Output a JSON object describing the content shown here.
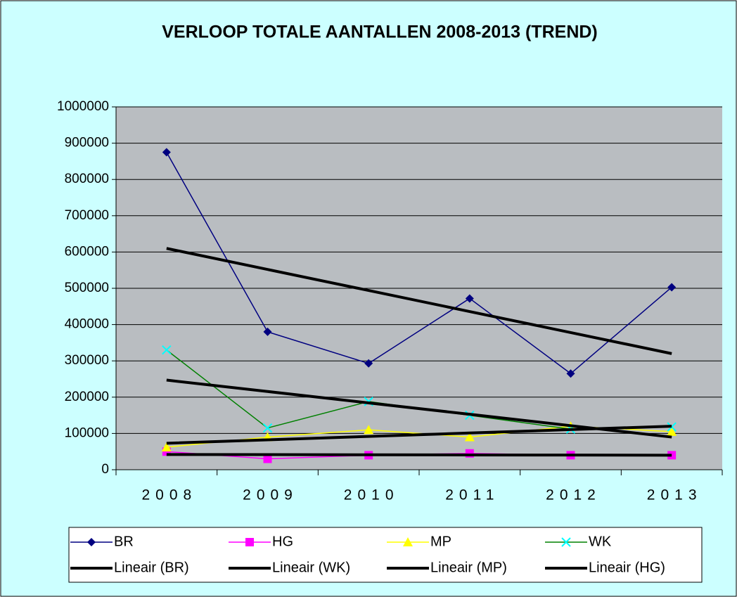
{
  "chart_data": {
    "type": "line",
    "title": "VERLOOP TOTALE AANTALLEN 2008-2013  (TREND)",
    "categories": [
      "2008",
      "2009",
      "2010",
      "2011",
      "2012",
      "2013"
    ],
    "ylim": [
      0,
      1000000
    ],
    "yticks": [
      0,
      100000,
      200000,
      300000,
      400000,
      500000,
      600000,
      700000,
      800000,
      900000,
      1000000
    ],
    "grid": true,
    "legend": "bottom",
    "series": [
      {
        "name": "BR",
        "color": "#000080",
        "marker": "diamond",
        "marker_color": "#000080",
        "values": [
          875000,
          380000,
          293000,
          472000,
          265000,
          503000
        ]
      },
      {
        "name": "HG",
        "color": "#ff00ff",
        "marker": "square",
        "marker_color": "#ff00ff",
        "values": [
          50000,
          30000,
          40000,
          45000,
          40000,
          40000
        ]
      },
      {
        "name": "MP",
        "color": "#ffff00",
        "marker": "triangle",
        "marker_color": "#ffff00",
        "values": [
          62000,
          90000,
          110000,
          90000,
          120000,
          105000
        ]
      },
      {
        "name": "WK",
        "color": "#008000",
        "marker": "x",
        "marker_color": "#00ffff",
        "values": [
          330000,
          115000,
          188000,
          150000,
          112000,
          118000
        ]
      },
      {
        "name": "Lineair (BR)",
        "color": "#000000",
        "trendline": true,
        "values": [
          610000,
          552000,
          494000,
          436000,
          378000,
          320000
        ]
      },
      {
        "name": "Lineair (WK)",
        "color": "#000000",
        "trendline": true,
        "values": [
          247000,
          215600,
          184200,
          152800,
          121400,
          90000
        ]
      },
      {
        "name": "Lineair (MP)",
        "color": "#000000",
        "trendline": true,
        "values": [
          73000,
          82400,
          91800,
          101200,
          110600,
          120000
        ]
      },
      {
        "name": "Lineair (HG)",
        "color": "#000000",
        "trendline": true,
        "values": [
          42000,
          41600,
          41200,
          40800,
          40400,
          40000
        ]
      }
    ]
  }
}
